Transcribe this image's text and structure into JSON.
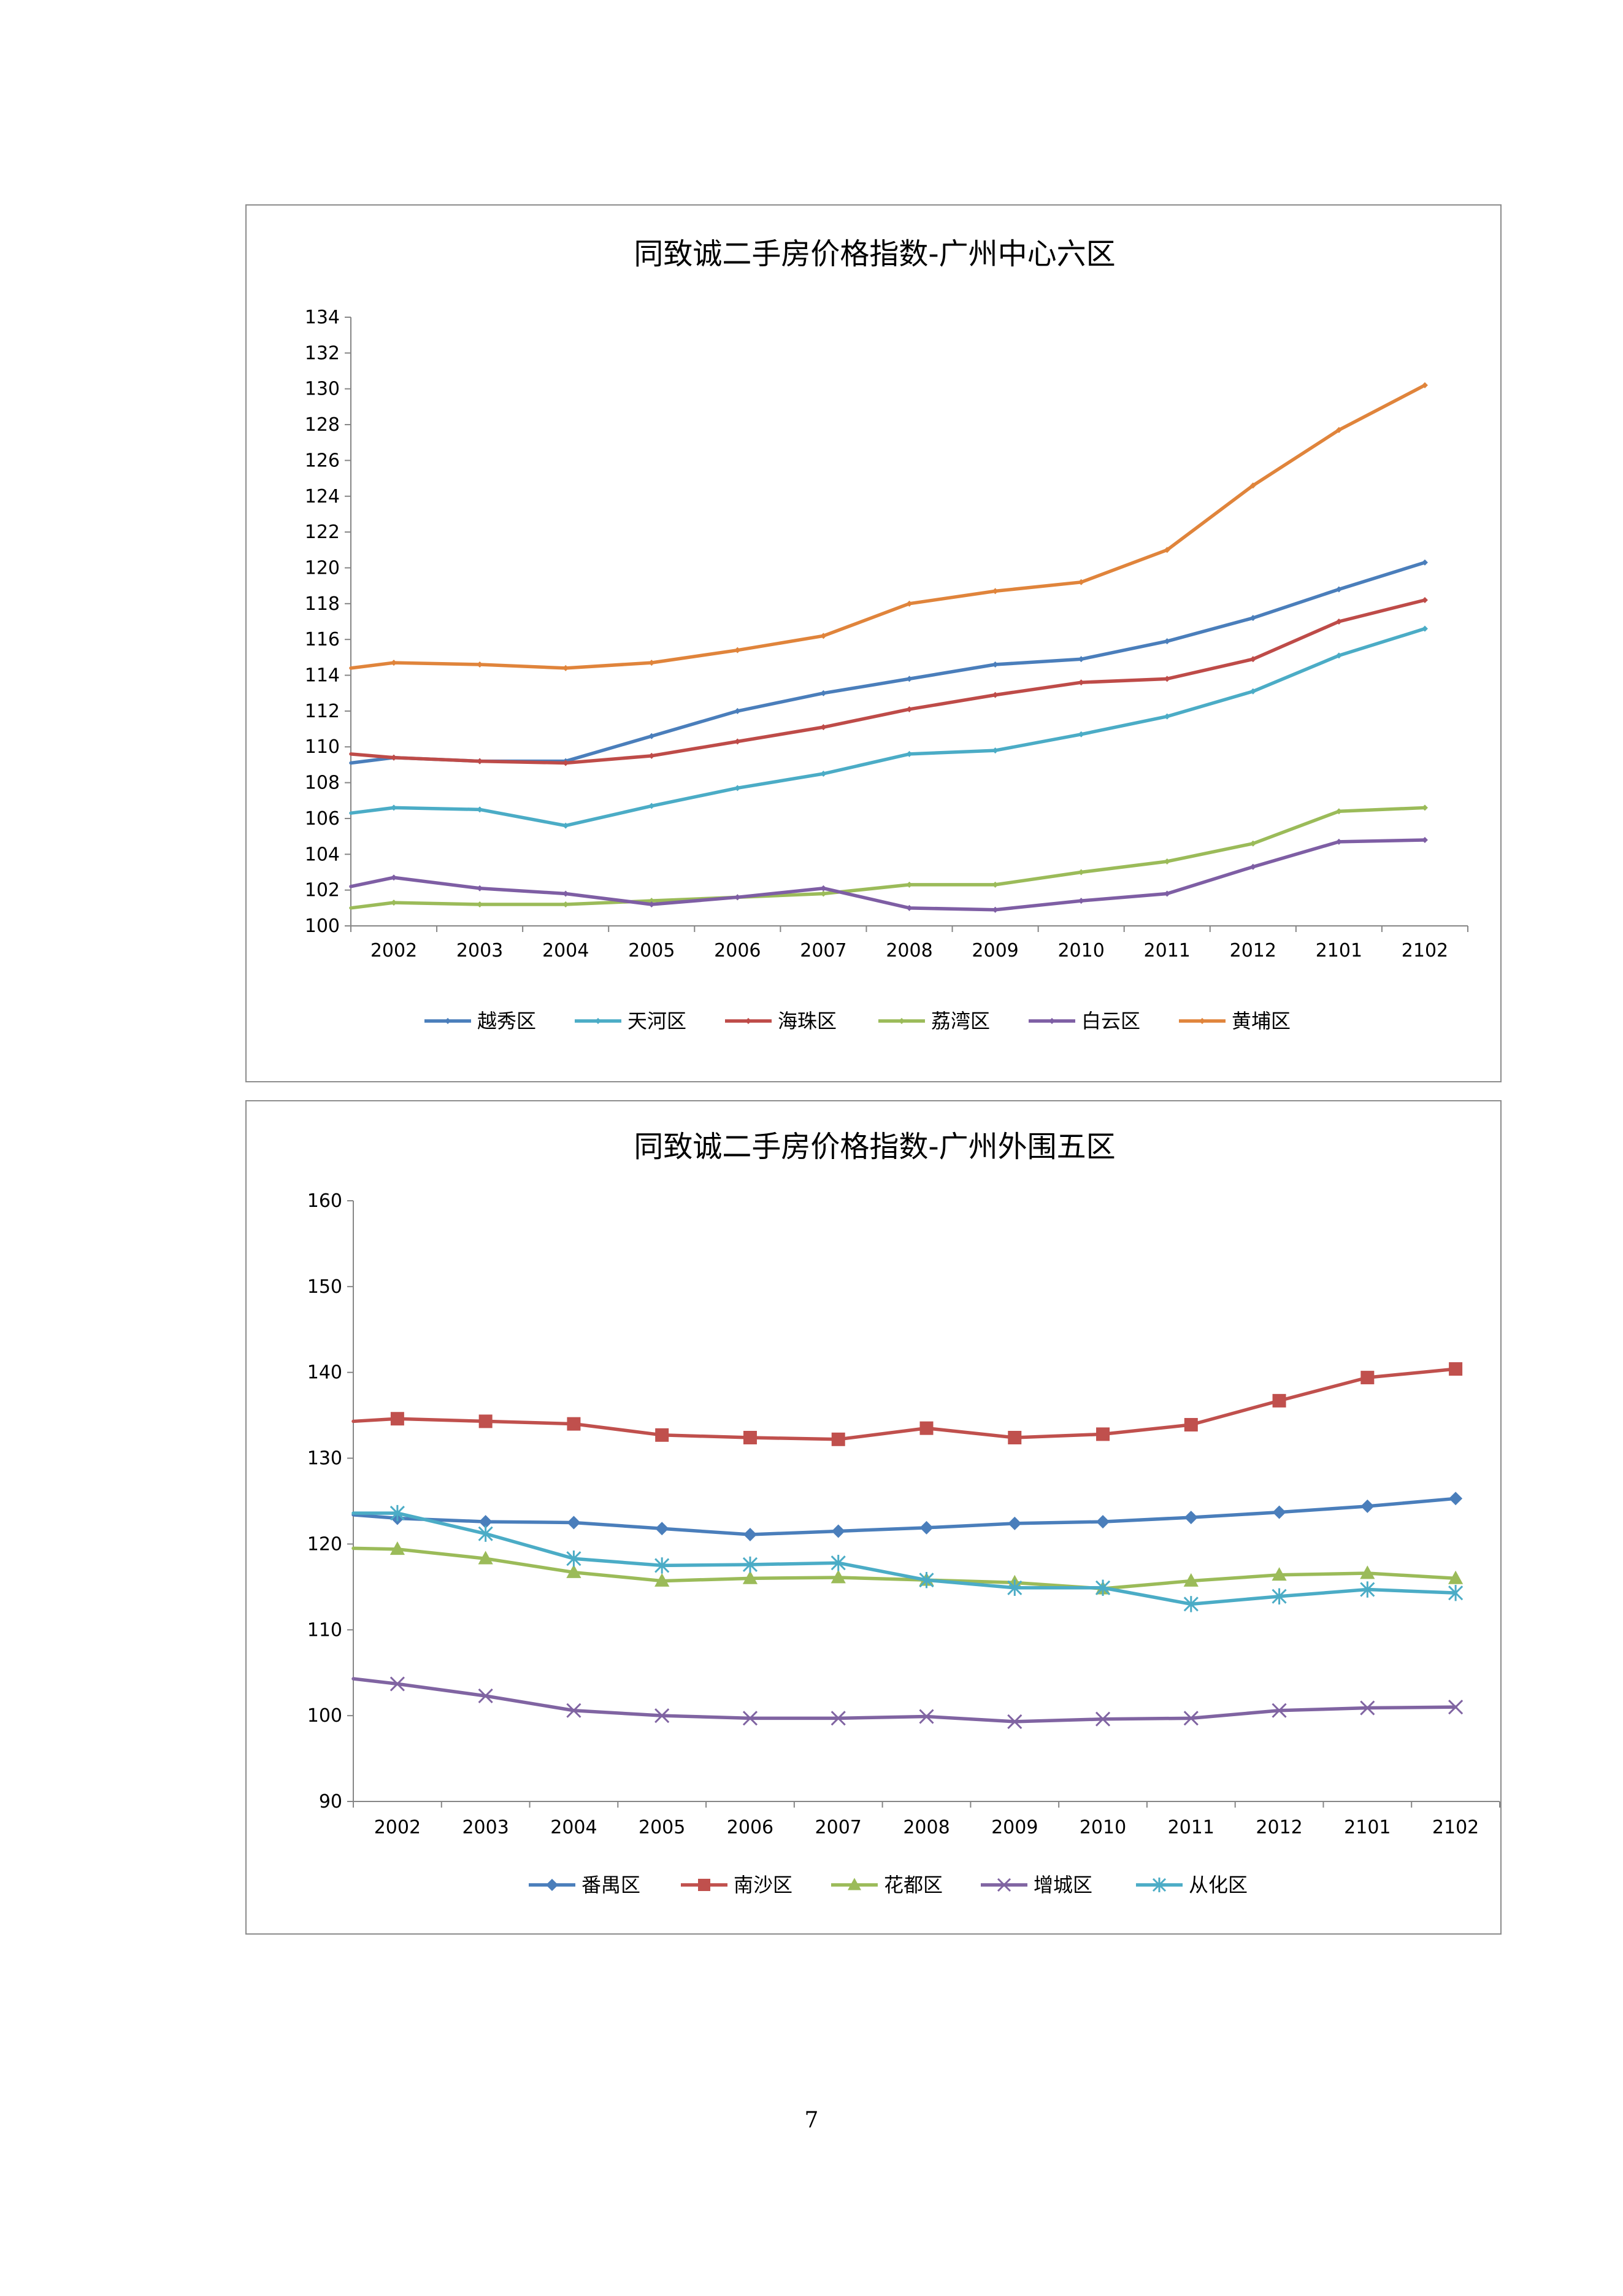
{
  "page": {
    "number": "7"
  },
  "chart_data": [
    {
      "type": "line",
      "title": "同致诚二手房价格指数-广州中心六区",
      "categories": [
        "2002",
        "2003",
        "2004",
        "2005",
        "2006",
        "2007",
        "2008",
        "2009",
        "2010",
        "2011",
        "2012",
        "2101",
        "2102"
      ],
      "ylim": [
        100,
        134
      ],
      "yticks": [
        100,
        102,
        104,
        106,
        108,
        110,
        112,
        114,
        116,
        118,
        120,
        122,
        124,
        126,
        128,
        130,
        132,
        134
      ],
      "legend_position": "bottom",
      "grid": false,
      "series": [
        {
          "name": "越秀区",
          "color": "#4A7EBB",
          "marker": "diamond",
          "start": 109.1,
          "values": [
            109.4,
            109.2,
            109.2,
            110.6,
            112.0,
            113.0,
            113.8,
            114.6,
            114.9,
            115.9,
            117.2,
            118.8,
            120.3
          ]
        },
        {
          "name": "天河区",
          "color": "#4BACC6",
          "marker": "diamond",
          "start": 106.3,
          "values": [
            106.6,
            106.5,
            105.6,
            106.7,
            107.7,
            108.5,
            109.6,
            109.8,
            110.7,
            111.7,
            113.1,
            115.1,
            116.6
          ]
        },
        {
          "name": "海珠区",
          "color": "#BE4B48",
          "marker": "diamond",
          "start": 109.6,
          "values": [
            109.4,
            109.2,
            109.1,
            109.5,
            110.3,
            111.1,
            112.1,
            112.9,
            113.6,
            113.8,
            114.9,
            117.0,
            118.2
          ]
        },
        {
          "name": "荔湾区",
          "color": "#9BBB59",
          "marker": "diamond",
          "start": 101.0,
          "values": [
            101.3,
            101.2,
            101.2,
            101.4,
            101.6,
            101.8,
            102.3,
            102.3,
            103.0,
            103.6,
            104.6,
            106.4,
            106.6
          ]
        },
        {
          "name": "白云区",
          "color": "#7E5EA4",
          "marker": "diamond",
          "start": 102.2,
          "values": [
            102.7,
            102.1,
            101.8,
            101.2,
            101.6,
            102.1,
            101.0,
            100.9,
            101.4,
            101.8,
            103.3,
            104.7,
            104.8
          ]
        },
        {
          "name": "黄埔区",
          "color": "#E0843B",
          "marker": "diamond",
          "start": 114.4,
          "values": [
            114.7,
            114.6,
            114.4,
            114.7,
            115.4,
            116.2,
            118.0,
            118.7,
            119.2,
            121.0,
            124.6,
            127.7,
            130.2
          ]
        }
      ]
    },
    {
      "type": "line",
      "title": "同致诚二手房价格指数-广州外围五区",
      "categories": [
        "2002",
        "2003",
        "2004",
        "2005",
        "2006",
        "2007",
        "2008",
        "2009",
        "2010",
        "2011",
        "2012",
        "2101",
        "2102"
      ],
      "ylim": [
        90,
        160
      ],
      "yticks": [
        90,
        100,
        110,
        120,
        130,
        140,
        150,
        160
      ],
      "legend_position": "bottom",
      "grid": false,
      "series": [
        {
          "name": "番禺区",
          "color": "#4A7EBB",
          "marker": "diamond",
          "start": 123.4,
          "values": [
            123.0,
            122.6,
            122.5,
            121.8,
            121.1,
            121.5,
            121.9,
            122.4,
            122.6,
            123.1,
            123.7,
            124.4,
            125.3
          ]
        },
        {
          "name": "南沙区",
          "color": "#C0504D",
          "marker": "square",
          "start": 134.3,
          "values": [
            134.6,
            134.3,
            134.0,
            132.7,
            132.4,
            132.2,
            133.5,
            132.4,
            132.8,
            133.9,
            136.7,
            139.4,
            140.4
          ]
        },
        {
          "name": "花都区",
          "color": "#9BBB59",
          "marker": "triangle",
          "start": 119.5,
          "values": [
            119.4,
            118.3,
            116.7,
            115.7,
            116.0,
            116.1,
            115.8,
            115.5,
            114.8,
            115.7,
            116.4,
            116.6,
            116.0
          ]
        },
        {
          "name": "增城区",
          "color": "#8064A2",
          "marker": "x",
          "start": 104.3,
          "values": [
            103.7,
            102.3,
            100.6,
            100.0,
            99.7,
            99.7,
            99.9,
            99.3,
            99.6,
            99.7,
            100.6,
            100.9,
            101.0
          ]
        },
        {
          "name": "从化区",
          "color": "#4BACC6",
          "marker": "star",
          "start": 123.6,
          "values": [
            123.6,
            121.2,
            118.3,
            117.5,
            117.6,
            117.8,
            115.8,
            114.9,
            114.9,
            113.0,
            113.9,
            114.7,
            114.3
          ]
        }
      ]
    }
  ]
}
